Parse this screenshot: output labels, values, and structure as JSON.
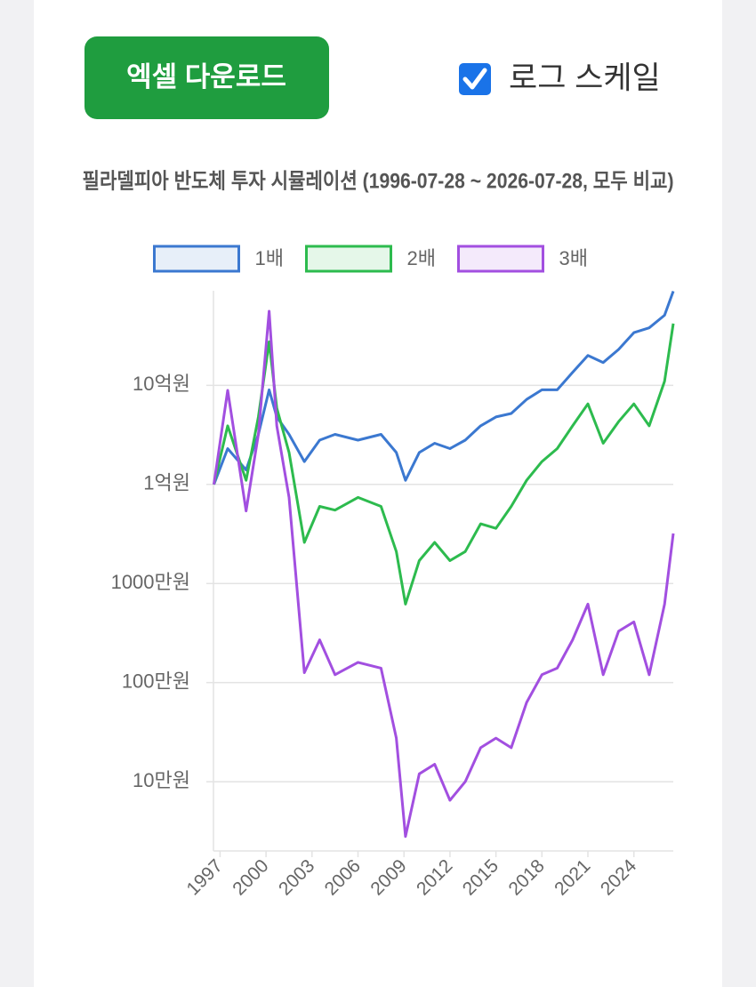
{
  "button": {
    "label": "엑셀 다운로드"
  },
  "checkbox": {
    "label": "로그 스케일",
    "checked": true
  },
  "chart_data": {
    "type": "line",
    "title": "필라델피아 반도체 투자 시뮬레이션 (1996-07-28 ~ 2026-07-28, 모두 비교)",
    "x": [
      1996.6,
      1997.5,
      1998.7,
      1999.5,
      2000.2,
      2000.7,
      2001.5,
      2002.5,
      2003.5,
      2004.5,
      2006,
      2007.5,
      2008.5,
      2009.1,
      2010,
      2011,
      2012,
      2013,
      2014,
      2015,
      2016,
      2017,
      2018,
      2019,
      2020,
      2021,
      2022,
      2023,
      2024,
      2025,
      2026,
      2026.57
    ],
    "series": [
      {
        "name": "1배",
        "color": "#3b78d0",
        "values": [
          100000000,
          230000000,
          140000000,
          320000000,
          900000000,
          480000000,
          320000000,
          170000000,
          280000000,
          320000000,
          280000000,
          320000000,
          210000000,
          110000000,
          210000000,
          260000000,
          230000000,
          280000000,
          390000000,
          480000000,
          520000000,
          720000000,
          900000000,
          900000000,
          1350000000,
          2000000000,
          1700000000,
          2300000000,
          3400000000,
          3800000000,
          5100000000,
          8900000000
        ]
      },
      {
        "name": "2배",
        "color": "#2dbb4e",
        "values": [
          100000000,
          390000000,
          110000000,
          480000000,
          2750000000,
          590000000,
          210000000,
          26000000,
          60000000,
          55000000,
          74000000,
          60000000,
          21000000,
          6200000,
          17000000,
          26000000,
          17000000,
          21000000,
          40000000,
          36000000,
          60000000,
          110000000,
          170000000,
          230000000,
          390000000,
          650000000,
          260000000,
          430000000,
          650000000,
          390000000,
          1100000000,
          4200000000
        ]
      },
      {
        "name": "3배",
        "color": "#a24fe0",
        "values": [
          100000000,
          890000000,
          54000000,
          320000000,
          5600000000,
          390000000,
          74000000,
          1260000,
          2700000,
          1200000,
          1600000,
          1400000,
          275000,
          28000,
          120000,
          150000,
          65000,
          100000,
          220000,
          275000,
          220000,
          630000,
          1200000,
          1400000,
          2700000,
          6200000,
          1200000,
          3300000,
          4100000,
          1200000,
          6200000,
          32000000
        ]
      }
    ],
    "xlim": [
      1996.57,
      2026.57
    ],
    "xticks": [
      1997,
      2000,
      2003,
      2006,
      2009,
      2012,
      2015,
      2018,
      2021,
      2024
    ],
    "ylim": [
      20000,
      9000000000
    ],
    "yticks": [
      {
        "value": 100000,
        "label": "10만원"
      },
      {
        "value": 1000000,
        "label": "100만원"
      },
      {
        "value": 10000000,
        "label": "1000만원"
      },
      {
        "value": 100000000,
        "label": "1억원"
      },
      {
        "value": 1000000000,
        "label": "10억원"
      }
    ],
    "log_scale": true,
    "grid": true,
    "legend": "top"
  }
}
